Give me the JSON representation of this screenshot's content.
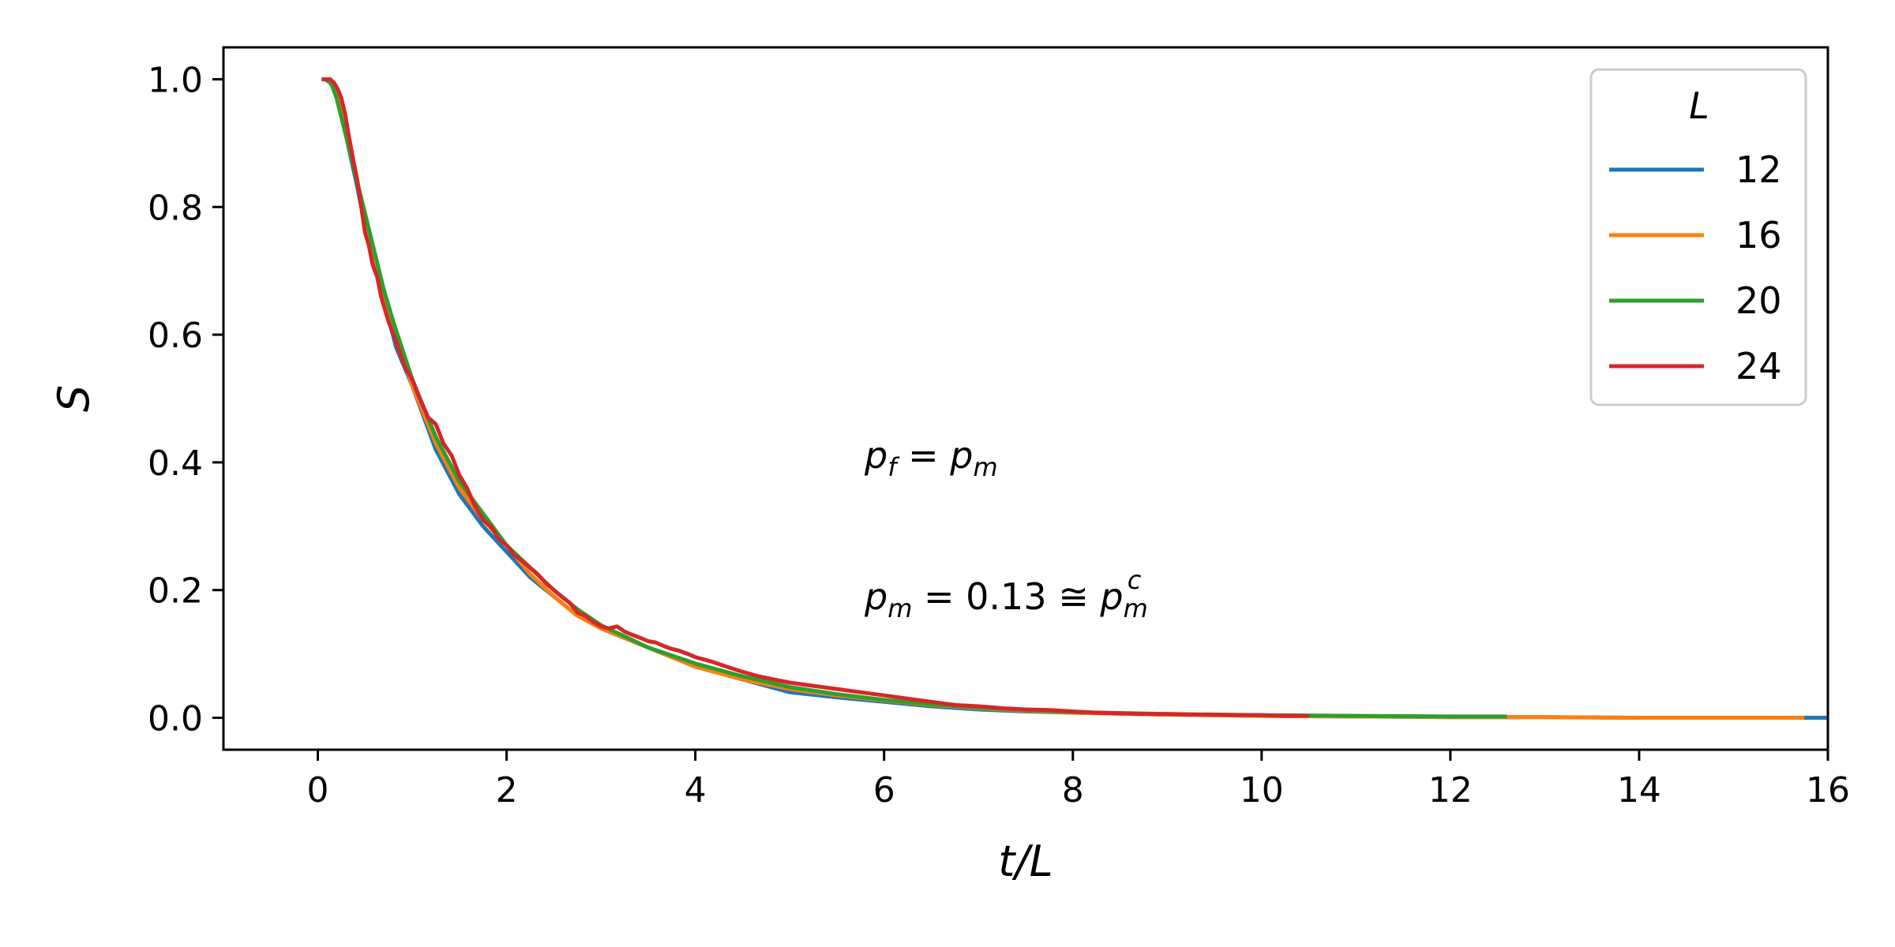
{
  "chart_data": {
    "type": "line",
    "xlabel": "t/L",
    "ylabel": "S",
    "xlim": [
      -1,
      16
    ],
    "ylim": [
      -0.05,
      1.05
    ],
    "xticks": [
      0,
      2,
      4,
      6,
      8,
      10,
      12,
      14,
      16
    ],
    "xtick_labels": [
      "0",
      "2",
      "4",
      "6",
      "8",
      "10",
      "12",
      "14",
      "16"
    ],
    "yticks": [
      0.0,
      0.2,
      0.4,
      0.6,
      0.8,
      1.0
    ],
    "ytick_labels": [
      "0.0",
      "0.2",
      "0.4",
      "0.6",
      "0.8",
      "1.0"
    ],
    "grid": false,
    "legend": {
      "title": "L",
      "placement": "top-right"
    },
    "annotations": [
      {
        "text": "p_f = p_m",
        "x": 5.75,
        "y": 0.39
      },
      {
        "text": "p_m = 0.13 ≅ p_m^c",
        "x": 5.75,
        "y": 0.17
      }
    ],
    "series": [
      {
        "name": "12",
        "color": "#1f77b4",
        "x": [
          0.08,
          0.17,
          0.25,
          0.33,
          0.42,
          0.5,
          0.67,
          0.83,
          1.0,
          1.25,
          1.5,
          1.75,
          2.0,
          2.25,
          2.5,
          2.75,
          3.0,
          3.5,
          4.0,
          4.5,
          5.0,
          5.5,
          6.0,
          6.5,
          7.0,
          7.5,
          8.0,
          9.0,
          10.0,
          11.0,
          12.0,
          13.0,
          14.0,
          15.0,
          16.0
        ],
        "y": [
          1.0,
          0.99,
          0.95,
          0.89,
          0.83,
          0.77,
          0.67,
          0.58,
          0.52,
          0.42,
          0.35,
          0.3,
          0.26,
          0.22,
          0.19,
          0.16,
          0.14,
          0.11,
          0.08,
          0.06,
          0.04,
          0.032,
          0.025,
          0.018,
          0.013,
          0.01,
          0.008,
          0.005,
          0.003,
          0.002,
          0.001,
          0.001,
          0.0,
          0.0,
          0.0
        ]
      },
      {
        "name": "16",
        "color": "#ff7f0e",
        "x": [
          0.06,
          0.13,
          0.19,
          0.25,
          0.38,
          0.5,
          0.63,
          0.75,
          1.0,
          1.25,
          1.5,
          1.75,
          2.0,
          2.25,
          2.5,
          2.75,
          3.0,
          3.5,
          4.0,
          4.5,
          5.0,
          5.5,
          6.0,
          6.5,
          7.0,
          7.5,
          8.0,
          9.0,
          10.0,
          11.0,
          12.0,
          13.0,
          14.0,
          15.0,
          15.75
        ],
        "y": [
          1.0,
          1.0,
          0.98,
          0.95,
          0.87,
          0.78,
          0.7,
          0.63,
          0.52,
          0.43,
          0.36,
          0.31,
          0.27,
          0.225,
          0.19,
          0.16,
          0.14,
          0.11,
          0.08,
          0.06,
          0.045,
          0.035,
          0.027,
          0.02,
          0.015,
          0.011,
          0.008,
          0.005,
          0.003,
          0.002,
          0.001,
          0.001,
          0.0,
          0.0,
          0.0
        ]
      },
      {
        "name": "20",
        "color": "#2ca02c",
        "x": [
          0.05,
          0.1,
          0.15,
          0.2,
          0.3,
          0.4,
          0.5,
          0.6,
          0.7,
          0.8,
          1.0,
          1.25,
          1.5,
          1.75,
          2.0,
          2.25,
          2.5,
          2.75,
          3.0,
          3.5,
          4.0,
          4.5,
          5.0,
          5.5,
          6.0,
          6.5,
          7.0,
          7.5,
          8.0,
          9.0,
          10.0,
          11.0,
          12.0,
          12.6
        ],
        "y": [
          1.0,
          1.0,
          0.99,
          0.97,
          0.91,
          0.85,
          0.79,
          0.73,
          0.67,
          0.62,
          0.53,
          0.44,
          0.37,
          0.32,
          0.27,
          0.235,
          0.2,
          0.17,
          0.145,
          0.11,
          0.085,
          0.065,
          0.048,
          0.037,
          0.028,
          0.021,
          0.016,
          0.012,
          0.009,
          0.006,
          0.004,
          0.003,
          0.002,
          0.002
        ]
      },
      {
        "name": "24",
        "color": "#d62728",
        "x": [
          0.04,
          0.08,
          0.13,
          0.17,
          0.21,
          0.25,
          0.29,
          0.33,
          0.38,
          0.42,
          0.46,
          0.5,
          0.54,
          0.58,
          0.63,
          0.67,
          0.75,
          0.83,
          0.92,
          1.0,
          1.08,
          1.17,
          1.25,
          1.33,
          1.42,
          1.5,
          1.58,
          1.67,
          1.75,
          1.83,
          1.92,
          2.0,
          2.08,
          2.17,
          2.25,
          2.33,
          2.42,
          2.5,
          2.58,
          2.67,
          2.75,
          2.83,
          2.92,
          3.0,
          3.08,
          3.17,
          3.25,
          3.33,
          3.42,
          3.5,
          3.58,
          3.67,
          3.75,
          3.83,
          3.92,
          4.0,
          4.17,
          4.33,
          4.5,
          4.67,
          4.83,
          5.0,
          5.25,
          5.5,
          5.75,
          6.0,
          6.25,
          6.5,
          6.75,
          7.0,
          7.25,
          7.5,
          7.75,
          8.0,
          8.25,
          8.5,
          8.75,
          9.0,
          9.25,
          9.5,
          9.75,
          10.0,
          10.25,
          10.5
        ],
        "y": [
          1.0,
          1.0,
          1.0,
          0.995,
          0.985,
          0.97,
          0.945,
          0.91,
          0.87,
          0.84,
          0.8,
          0.76,
          0.74,
          0.71,
          0.69,
          0.66,
          0.62,
          0.59,
          0.55,
          0.53,
          0.5,
          0.47,
          0.46,
          0.43,
          0.41,
          0.38,
          0.36,
          0.33,
          0.31,
          0.3,
          0.28,
          0.27,
          0.255,
          0.245,
          0.235,
          0.225,
          0.21,
          0.2,
          0.19,
          0.18,
          0.165,
          0.16,
          0.15,
          0.143,
          0.14,
          0.143,
          0.135,
          0.13,
          0.125,
          0.12,
          0.118,
          0.112,
          0.108,
          0.105,
          0.1,
          0.095,
          0.088,
          0.08,
          0.072,
          0.065,
          0.06,
          0.055,
          0.05,
          0.045,
          0.04,
          0.035,
          0.03,
          0.025,
          0.02,
          0.018,
          0.015,
          0.013,
          0.012,
          0.01,
          0.008,
          0.007,
          0.006,
          0.006,
          0.005,
          0.005,
          0.004,
          0.004,
          0.003,
          0.003
        ]
      }
    ]
  }
}
